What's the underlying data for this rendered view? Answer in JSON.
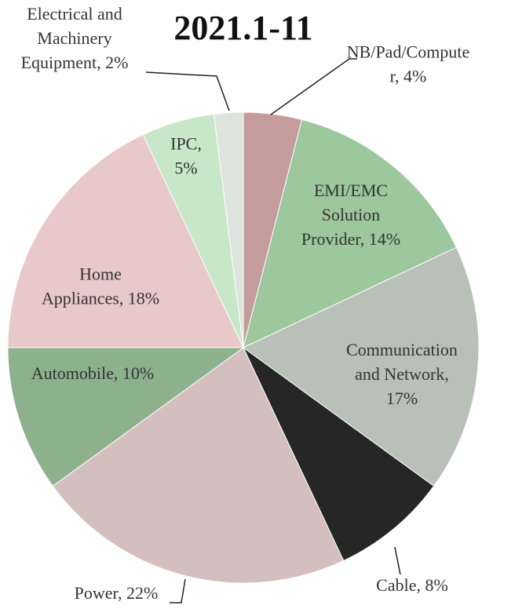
{
  "chart_data": {
    "type": "pie",
    "title": "2021.1-11",
    "values": [
      4,
      14,
      17,
      8,
      22,
      10,
      18,
      5,
      2
    ],
    "value_labels": [
      "NB/Pad/Compute\nr, 4%",
      "EMI/EMC\nSolution\nProvider, 14%",
      "Communication\nand Network,\n17%",
      "Cable, 8%",
      "Power, 22%",
      "Automobile, 10%",
      "Home\nAppliances, 18%",
      "IPC,\n5%",
      "Electrical and\nMachinery\nEquipment, 2%"
    ],
    "colors": [
      "#c49c9c",
      "#9dc79d",
      "#b8c0b8",
      "#262626",
      "#d4bfbf",
      "#8db08d",
      "#e8c8c8",
      "#c8e6c8",
      "#dde3dd"
    ]
  }
}
